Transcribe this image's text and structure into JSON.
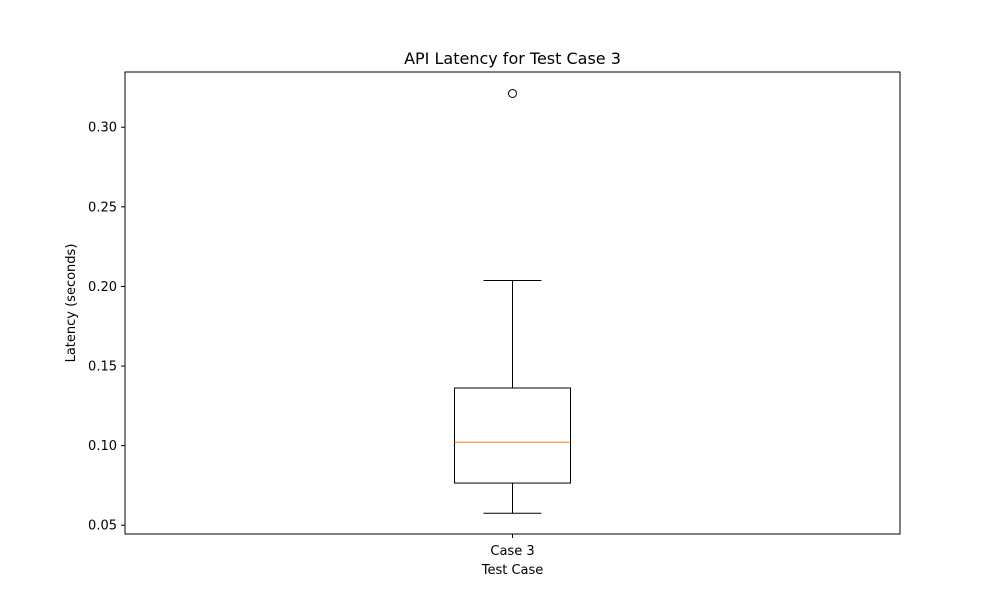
{
  "chart_data": {
    "type": "box",
    "title": "API Latency for Test Case 3",
    "xlabel": "Test Case",
    "ylabel": "Latency (seconds)",
    "categories": [
      "Case 3"
    ],
    "boxes": [
      {
        "category": "Case 3",
        "whisker_low": 0.0575,
        "q1": 0.0765,
        "median": 0.1021,
        "q3": 0.1362,
        "whisker_high": 0.2037,
        "outliers": [
          0.3212
        ]
      }
    ],
    "ylim": [
      0.0445,
      0.3347
    ],
    "yticks": [
      0.05,
      0.1,
      0.15,
      0.2,
      0.25,
      0.3
    ],
    "ytick_labels": [
      "0.05",
      "0.10",
      "0.15",
      "0.20",
      "0.25",
      "0.30"
    ],
    "grid": false,
    "colors": {
      "box": "#000000",
      "median": "#ff7f0e",
      "outlier": "#000000"
    }
  }
}
